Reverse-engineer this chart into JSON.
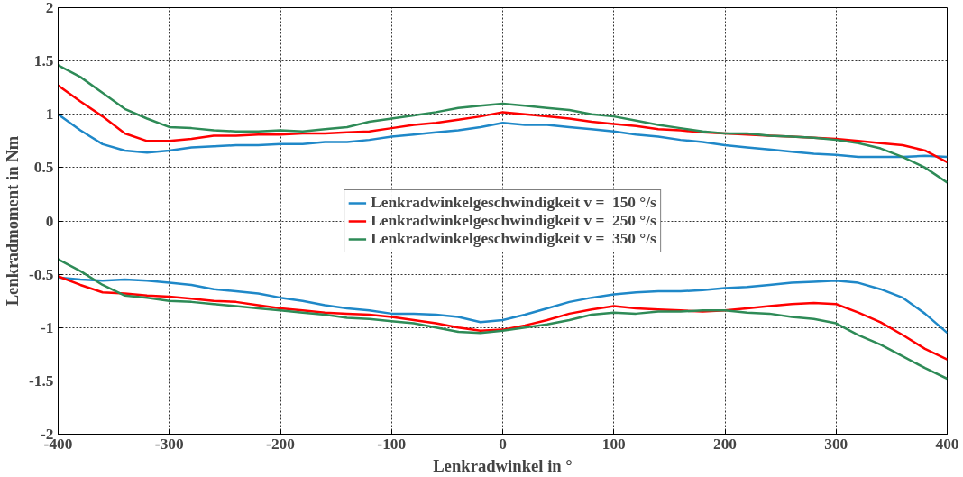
{
  "chart_data": {
    "type": "line",
    "xlabel": "Lenkradwinkel in °",
    "ylabel": "Lenkradmoment in Nm",
    "x": [
      -400,
      -380,
      -360,
      -340,
      -320,
      -300,
      -280,
      -260,
      -240,
      -220,
      -200,
      -180,
      -160,
      -140,
      -120,
      -100,
      -80,
      -60,
      -40,
      -20,
      0,
      20,
      40,
      60,
      80,
      100,
      120,
      140,
      160,
      180,
      200,
      220,
      240,
      260,
      280,
      300,
      320,
      340,
      360,
      380,
      400
    ],
    "series": [
      {
        "name": "Lenkradwinkelgeschwindigkeit v =  150 °/s",
        "color": "#1f88c8",
        "values": [
          1.0,
          0.85,
          0.72,
          0.66,
          0.64,
          0.66,
          0.69,
          0.7,
          0.71,
          0.71,
          0.72,
          0.72,
          0.74,
          0.74,
          0.76,
          0.79,
          0.81,
          0.83,
          0.85,
          0.88,
          0.92,
          0.9,
          0.9,
          0.88,
          0.86,
          0.84,
          0.81,
          0.79,
          0.76,
          0.74,
          0.71,
          0.69,
          0.67,
          0.65,
          0.63,
          0.62,
          0.6,
          0.6,
          0.6,
          0.61,
          0.6
        ]
      },
      {
        "name": "Lenkradwinkelgeschwindigkeit v =  250 °/s",
        "color": "#ff0000",
        "values": [
          1.27,
          1.12,
          0.98,
          0.82,
          0.75,
          0.75,
          0.77,
          0.8,
          0.8,
          0.81,
          0.81,
          0.82,
          0.82,
          0.83,
          0.84,
          0.87,
          0.9,
          0.92,
          0.95,
          0.98,
          1.02,
          1.0,
          0.98,
          0.96,
          0.93,
          0.91,
          0.89,
          0.86,
          0.85,
          0.83,
          0.82,
          0.81,
          0.8,
          0.79,
          0.78,
          0.77,
          0.75,
          0.73,
          0.71,
          0.66,
          0.55
        ]
      },
      {
        "name": "Lenkradwinkelgeschwindigkeit v =  350 °/s",
        "color": "#2e8b57",
        "values": [
          1.46,
          1.35,
          1.2,
          1.05,
          0.96,
          0.88,
          0.87,
          0.85,
          0.84,
          0.84,
          0.85,
          0.84,
          0.86,
          0.88,
          0.93,
          0.96,
          0.99,
          1.02,
          1.06,
          1.08,
          1.1,
          1.08,
          1.06,
          1.04,
          1.0,
          0.98,
          0.94,
          0.9,
          0.87,
          0.84,
          0.82,
          0.82,
          0.8,
          0.79,
          0.78,
          0.76,
          0.73,
          0.68,
          0.6,
          0.5,
          0.36
        ]
      },
      {
        "color": "#1f88c8",
        "values": [
          -0.53,
          -0.55,
          -0.56,
          -0.55,
          -0.56,
          -0.58,
          -0.6,
          -0.64,
          -0.66,
          -0.68,
          -0.72,
          -0.75,
          -0.79,
          -0.82,
          -0.84,
          -0.87,
          -0.87,
          -0.88,
          -0.9,
          -0.95,
          -0.93,
          -0.88,
          -0.82,
          -0.76,
          -0.72,
          -0.69,
          -0.67,
          -0.66,
          -0.66,
          -0.65,
          -0.63,
          -0.62,
          -0.6,
          -0.58,
          -0.57,
          -0.56,
          -0.58,
          -0.64,
          -0.72,
          -0.87,
          -1.05
        ]
      },
      {
        "color": "#ff0000",
        "values": [
          -0.52,
          -0.6,
          -0.67,
          -0.68,
          -0.7,
          -0.71,
          -0.73,
          -0.75,
          -0.76,
          -0.79,
          -0.82,
          -0.84,
          -0.86,
          -0.87,
          -0.88,
          -0.9,
          -0.93,
          -0.96,
          -1.0,
          -1.03,
          -1.02,
          -0.98,
          -0.93,
          -0.87,
          -0.83,
          -0.8,
          -0.82,
          -0.83,
          -0.84,
          -0.85,
          -0.84,
          -0.82,
          -0.8,
          -0.78,
          -0.77,
          -0.78,
          -0.86,
          -0.95,
          -1.07,
          -1.2,
          -1.3
        ]
      },
      {
        "color": "#2e8b57",
        "values": [
          -0.36,
          -0.47,
          -0.6,
          -0.7,
          -0.72,
          -0.75,
          -0.76,
          -0.78,
          -0.8,
          -0.82,
          -0.84,
          -0.86,
          -0.88,
          -0.91,
          -0.92,
          -0.94,
          -0.96,
          -1.0,
          -1.04,
          -1.05,
          -1.03,
          -1.0,
          -0.97,
          -0.93,
          -0.88,
          -0.86,
          -0.87,
          -0.85,
          -0.85,
          -0.84,
          -0.84,
          -0.86,
          -0.87,
          -0.9,
          -0.92,
          -0.96,
          -1.07,
          -1.16,
          -1.27,
          -1.38,
          -1.48
        ]
      }
    ],
    "xlim": [
      -400,
      400
    ],
    "xticks": [
      -400,
      -300,
      -200,
      -100,
      0,
      100,
      200,
      300,
      400
    ],
    "ylim": [
      -2,
      2
    ],
    "yticks": [
      -2,
      -1.5,
      -1,
      -0.5,
      0,
      0.5,
      1,
      1.5,
      2
    ],
    "grid": true,
    "legend": "center",
    "line_style": "solid"
  }
}
